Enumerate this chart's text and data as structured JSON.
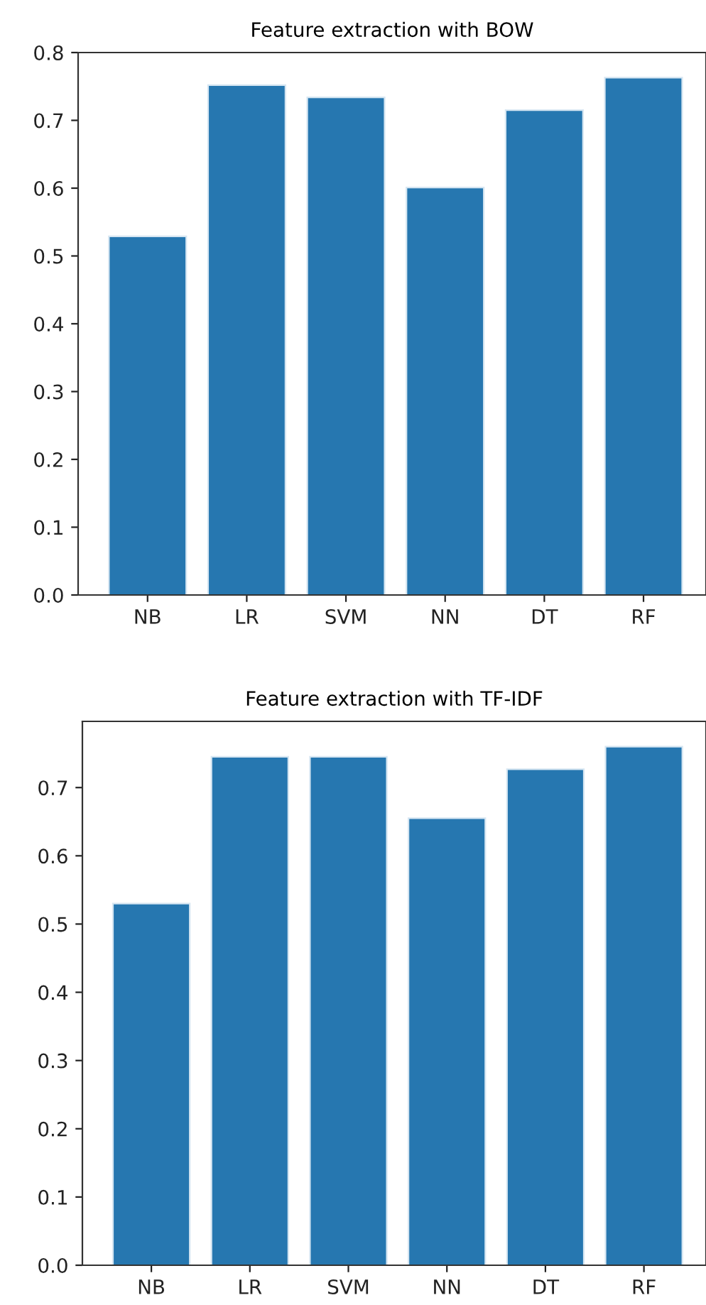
{
  "chart_data": [
    {
      "type": "bar",
      "title": "Feature extraction with BOW",
      "categories": [
        "NB",
        "LR",
        "SVM",
        "NN",
        "DT",
        "RF"
      ],
      "values": [
        0.529,
        0.752,
        0.734,
        0.601,
        0.715,
        0.763
      ],
      "color": "#2677b0",
      "ylim": [
        0,
        0.8
      ],
      "yticks": [
        {
          "value": 0,
          "label": "0.0"
        },
        0.1,
        0.2,
        0.3,
        0.4,
        0.5,
        0.6,
        0.7,
        0.8
      ],
      "grid": false
    },
    {
      "type": "bar",
      "title": "Feature extraction with TF-IDF",
      "categories": [
        "NB",
        "LR",
        "SVM",
        "NN",
        "DT",
        "RF"
      ],
      "values": [
        0.53,
        0.745,
        0.745,
        0.655,
        0.727,
        0.76
      ],
      "color": "#2677b0",
      "ylim": [
        0,
        0.797
      ],
      "yticks": [
        {
          "value": 0,
          "label": "0.0"
        },
        0.1,
        0.2,
        0.3,
        0.4,
        0.5,
        0.6,
        0.7
      ],
      "grid": false
    }
  ]
}
